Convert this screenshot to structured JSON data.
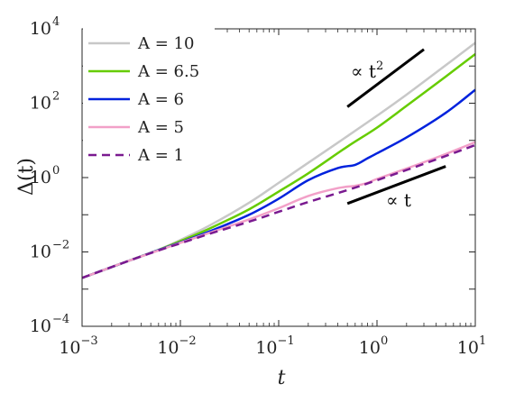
{
  "chart_data": {
    "type": "line",
    "xscale": "log",
    "yscale": "log",
    "xlim": [
      0.001,
      10
    ],
    "ylim": [
      0.0001,
      10000
    ],
    "xlabel": "t",
    "ylabel": "Δ(t)",
    "xticks": [
      {
        "base": "10",
        "exp": "−3",
        "value": 0.001
      },
      {
        "base": "10",
        "exp": "−2",
        "value": 0.01
      },
      {
        "base": "10",
        "exp": "−1",
        "value": 0.1
      },
      {
        "base": "10",
        "exp": "0",
        "value": 1
      },
      {
        "base": "10",
        "exp": "1",
        "value": 10
      }
    ],
    "yticks": [
      {
        "base": "10",
        "exp": "−4",
        "value": 0.0001
      },
      {
        "base": "10",
        "exp": "−2",
        "value": 0.01
      },
      {
        "base": "10",
        "exp": "0",
        "value": 1
      },
      {
        "base": "10",
        "exp": "2",
        "value": 100
      },
      {
        "base": "10",
        "exp": "4",
        "value": 10000
      }
    ],
    "grid": false,
    "legend_position": "top-left",
    "series": [
      {
        "name": "A = 10",
        "color": "#c8c8c8",
        "dash": "solid",
        "points": [
          [
            0.001,
            0.002
          ],
          [
            0.003,
            0.0058
          ],
          [
            0.006,
            0.0115
          ],
          [
            0.01,
            0.021
          ],
          [
            0.02,
            0.052
          ],
          [
            0.05,
            0.21
          ],
          [
            0.1,
            0.72
          ],
          [
            0.2,
            2.5
          ],
          [
            0.5,
            13
          ],
          [
            1,
            46
          ],
          [
            2,
            170
          ],
          [
            5,
            1050
          ],
          [
            10,
            4200
          ]
        ]
      },
      {
        "name": "A = 6.5",
        "color": "#66cc00",
        "dash": "solid",
        "points": [
          [
            0.001,
            0.002
          ],
          [
            0.003,
            0.0058
          ],
          [
            0.006,
            0.0113
          ],
          [
            0.01,
            0.0195
          ],
          [
            0.02,
            0.043
          ],
          [
            0.05,
            0.14
          ],
          [
            0.1,
            0.42
          ],
          [
            0.2,
            1.3
          ],
          [
            0.5,
            6.8
          ],
          [
            1,
            22
          ],
          [
            2,
            85
          ],
          [
            5,
            520
          ],
          [
            10,
            2100
          ]
        ]
      },
      {
        "name": "A = 6",
        "color": "#0022dd",
        "dash": "solid",
        "points": [
          [
            0.001,
            0.002
          ],
          [
            0.003,
            0.0058
          ],
          [
            0.006,
            0.0112
          ],
          [
            0.01,
            0.018
          ],
          [
            0.02,
            0.036
          ],
          [
            0.05,
            0.1
          ],
          [
            0.1,
            0.27
          ],
          [
            0.2,
            0.85
          ],
          [
            0.4,
            1.8
          ],
          [
            0.6,
            2.2
          ],
          [
            0.8,
            3.3
          ],
          [
            1,
            4.5
          ],
          [
            2,
            12
          ],
          [
            5,
            55
          ],
          [
            10,
            230
          ]
        ]
      },
      {
        "name": "A = 5",
        "color": "#f2a0c8",
        "dash": "solid",
        "points": [
          [
            0.001,
            0.002
          ],
          [
            0.003,
            0.0058
          ],
          [
            0.006,
            0.011
          ],
          [
            0.01,
            0.0175
          ],
          [
            0.02,
            0.033
          ],
          [
            0.05,
            0.075
          ],
          [
            0.1,
            0.15
          ],
          [
            0.2,
            0.32
          ],
          [
            0.4,
            0.52
          ],
          [
            0.6,
            0.6
          ],
          [
            0.8,
            0.72
          ],
          [
            1,
            0.92
          ],
          [
            2,
            1.75
          ],
          [
            5,
            4.3
          ],
          [
            10,
            9
          ]
        ]
      },
      {
        "name": "A = 1",
        "color": "#7a1a90",
        "dash": "dashed",
        "points": [
          [
            0.001,
            0.002
          ],
          [
            0.003,
            0.0058
          ],
          [
            0.006,
            0.011
          ],
          [
            0.01,
            0.017
          ],
          [
            0.02,
            0.031
          ],
          [
            0.05,
            0.065
          ],
          [
            0.1,
            0.12
          ],
          [
            0.2,
            0.22
          ],
          [
            0.5,
            0.46
          ],
          [
            1,
            0.85
          ],
          [
            2,
            1.6
          ],
          [
            5,
            3.8
          ],
          [
            10,
            7.5
          ]
        ]
      }
    ],
    "annotations": [
      {
        "text": "∝ t",
        "sup": "2",
        "line": [
          [
            0.5,
            80
          ],
          [
            3,
            2800
          ]
        ]
      },
      {
        "text": "∝ t",
        "sup": "",
        "line": [
          [
            0.5,
            0.2
          ],
          [
            5,
            2
          ]
        ]
      }
    ]
  }
}
